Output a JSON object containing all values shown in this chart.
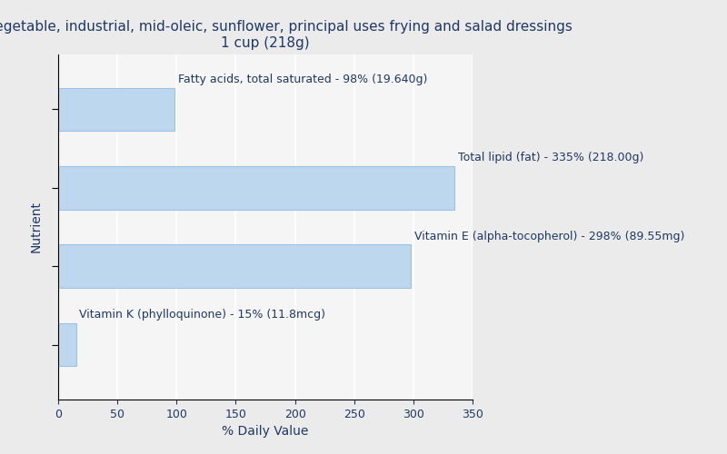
{
  "title_line1": "Oil, vegetable, industrial, mid-oleic, sunflower, principal uses frying and salad dressings",
  "title_line2": "1 cup (218g)",
  "bars": [
    {
      "label": "Vitamin K (phylloquinone) - 15% (11.8mcg)",
      "value": 15
    },
    {
      "label": "Vitamin E (alpha-tocopherol) - 298% (89.55mg)",
      "value": 298
    },
    {
      "label": "Total lipid (fat) - 335% (218.00g)",
      "value": 335
    },
    {
      "label": "Fatty acids, total saturated - 98% (19.640g)",
      "value": 98
    }
  ],
  "bar_color": "#BDD7EE",
  "bar_edge_color": "#9CC3E5",
  "text_color": "#1F3864",
  "background_color": "#EBEBEB",
  "plot_bg_color": "#F5F5F5",
  "xlabel": "% Daily Value",
  "ylabel": "Nutrient",
  "xlim": [
    0,
    350
  ],
  "xticks": [
    0,
    50,
    100,
    150,
    200,
    250,
    300,
    350
  ],
  "title_fontsize": 11,
  "label_fontsize": 9,
  "axis_fontsize": 10,
  "bar_height": 0.55
}
